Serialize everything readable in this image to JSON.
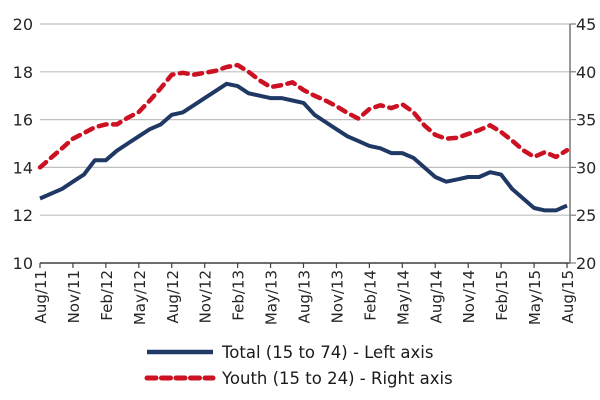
{
  "chart_data": {
    "type": "line",
    "title": "",
    "x_frequency": "monthly",
    "months": [
      "Aug/11",
      "Sep/11",
      "Oct/11",
      "Nov/11",
      "Dec/11",
      "Jan/12",
      "Feb/12",
      "Mar/12",
      "Apr/12",
      "May/12",
      "Jun/12",
      "Jul/12",
      "Aug/12",
      "Sep/12",
      "Oct/12",
      "Nov/12",
      "Dec/12",
      "Jan/13",
      "Feb/13",
      "Mar/13",
      "Apr/13",
      "May/13",
      "Jun/13",
      "Jul/13",
      "Aug/13",
      "Sep/13",
      "Oct/13",
      "Nov/13",
      "Dec/13",
      "Jan/14",
      "Feb/14",
      "Mar/14",
      "Apr/14",
      "May/14",
      "Jun/14",
      "Jul/14",
      "Aug/14",
      "Sep/14",
      "Oct/14",
      "Nov/14",
      "Dec/14",
      "Jan/15",
      "Feb/15",
      "Mar/15",
      "Apr/15",
      "May/15",
      "Jun/15",
      "Jul/15",
      "Aug/15"
    ],
    "x_tick_labels": [
      "Aug/11",
      "Nov/11",
      "Feb/12",
      "May/12",
      "Aug/12",
      "Nov/12",
      "Feb/13",
      "May/13",
      "Aug/13",
      "Nov/13",
      "Feb/14",
      "May/14",
      "Aug/14",
      "Nov/14",
      "Feb/15",
      "May/15",
      "Aug/15"
    ],
    "x_tick_every_n_months": 3,
    "left_axis": {
      "min": 10,
      "max": 20,
      "ticks": [
        10,
        12,
        14,
        16,
        18,
        20
      ]
    },
    "right_axis": {
      "min": 20,
      "max": 45,
      "ticks": [
        20,
        25,
        30,
        35,
        40,
        45
      ]
    },
    "grid": "horizontal-on",
    "legend_position": "bottom",
    "series": [
      {
        "name": "Total (15 to 74) - Left axis",
        "axis": "left",
        "style": "solid",
        "color": "#1F3864",
        "values": [
          12.7,
          12.9,
          13.1,
          13.4,
          13.7,
          14.3,
          14.3,
          14.7,
          15.0,
          15.3,
          15.6,
          15.8,
          16.2,
          16.3,
          16.6,
          16.9,
          17.2,
          17.5,
          17.4,
          17.1,
          17.0,
          16.9,
          16.9,
          16.8,
          16.7,
          16.2,
          15.9,
          15.6,
          15.3,
          15.1,
          14.9,
          14.8,
          14.6,
          14.6,
          14.4,
          14.0,
          13.6,
          13.4,
          13.5,
          13.6,
          13.6,
          13.8,
          13.7,
          13.1,
          12.7,
          12.3,
          12.2,
          12.2,
          12.4
        ]
      },
      {
        "name": "Youth (15 to 24) - Right axis",
        "axis": "right",
        "style": "dashed",
        "color": "#CC1122",
        "values": [
          30.0,
          31.0,
          32.0,
          33.0,
          33.6,
          34.2,
          34.5,
          34.5,
          35.2,
          35.8,
          37.0,
          38.3,
          39.7,
          39.9,
          39.7,
          39.9,
          40.1,
          40.5,
          40.7,
          40.0,
          39.1,
          38.4,
          38.6,
          38.9,
          38.1,
          37.5,
          37.0,
          36.4,
          35.7,
          35.1,
          36.1,
          36.5,
          36.2,
          36.6,
          35.8,
          34.4,
          33.4,
          33.0,
          33.1,
          33.5,
          33.9,
          34.4,
          33.7,
          32.8,
          31.8,
          31.1,
          31.6,
          31.1,
          31.8
        ]
      }
    ],
    "legend": [
      {
        "label": "Total (15 to 74) - Left axis",
        "swatch": "solid-line"
      },
      {
        "label": "Youth (15 to 24) - Right axis",
        "swatch": "dashed-line"
      }
    ],
    "colors": {
      "total_line": "#1F3864",
      "youth_line": "#CC1122",
      "gridline": "#BFBFBF",
      "bottom_axis": "#3F3F3F",
      "right_axis": "#7F7F7F",
      "tick_text": "#262626",
      "background": "#FFFFFF"
    }
  }
}
